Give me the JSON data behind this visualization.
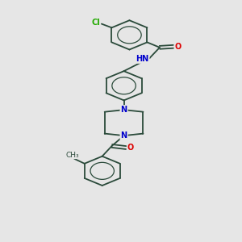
{
  "background_color": "#e6e6e6",
  "bond_color": "#2a4a3a",
  "atom_colors": {
    "N": "#0000cc",
    "O": "#dd0000",
    "Cl": "#22aa00",
    "C": "#2a4a3a",
    "H": "#2a4a3a"
  },
  "figsize": [
    3.0,
    3.0
  ],
  "dpi": 100,
  "lw": 1.3,
  "fs": 7.0
}
